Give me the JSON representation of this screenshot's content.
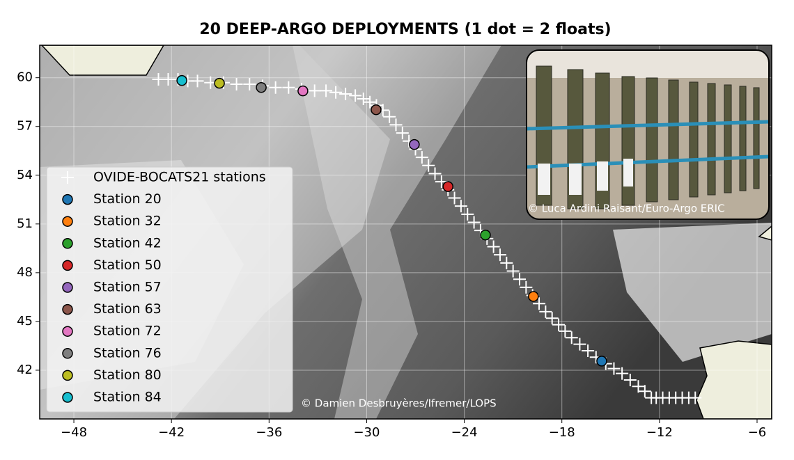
{
  "chart_data": {
    "type": "scatter",
    "title": "20 DEEP-ARGO DEPLOYMENTS (1 dot = 2 floats)",
    "annotations": [
      "© Damien Desbruyères/Ifremer/LOPS",
      "© Luca Ardini Raisant/Euro-Argo ERIC"
    ],
    "xlim": [
      -50.1,
      -5.1
    ],
    "ylim": [
      39.0,
      62.0
    ],
    "xticks": [
      {
        "value": -48,
        "label": "−48"
      },
      {
        "value": -42,
        "label": "−42"
      },
      {
        "value": -36,
        "label": "−36"
      },
      {
        "value": -30,
        "label": "−30"
      },
      {
        "value": -24,
        "label": "−24"
      },
      {
        "value": -18,
        "label": "−18"
      },
      {
        "value": -12,
        "label": "−12"
      },
      {
        "value": -6,
        "label": "−6"
      }
    ],
    "yticks": [
      42,
      45,
      48,
      51,
      54,
      57,
      60
    ],
    "grid": true,
    "legend": "lower left",
    "series": [
      {
        "name": "OVIDE-BOCATS21 stations",
        "marker": "+",
        "color": "#ffffff",
        "x": [
          -9.8,
          -10.2,
          -10.6,
          -11.0,
          -11.4,
          -11.8,
          -12.2,
          -12.5,
          -12.9,
          -13.3,
          -13.8,
          -14.3,
          -14.8,
          -15.3,
          -15.9,
          -16.4,
          -16.9,
          -17.4,
          -17.8,
          -18.2,
          -18.6,
          -19.0,
          -19.4,
          -19.8,
          -20.2,
          -20.6,
          -21.0,
          -21.4,
          -21.8,
          -22.2,
          -22.6,
          -23.0,
          -23.4,
          -23.8,
          -24.2,
          -24.6,
          -25.0,
          -25.4,
          -25.8,
          -26.2,
          -26.6,
          -27.0,
          -27.4,
          -27.8,
          -28.2,
          -28.6,
          -29.0,
          -29.4,
          -29.8,
          -30.2,
          -30.7,
          -31.3,
          -31.9,
          -32.5,
          -33.2,
          -34.0,
          -34.8,
          -35.6,
          -36.4,
          -37.2,
          -38.0,
          -38.8,
          -39.6,
          -40.4,
          -41.0,
          -41.6,
          -42.2,
          -42.8
        ],
        "y": [
          40.3,
          40.3,
          40.3,
          40.3,
          40.3,
          40.3,
          40.3,
          40.3,
          40.7,
          41.0,
          41.4,
          41.8,
          42.1,
          42.4,
          42.8,
          43.2,
          43.6,
          44.0,
          44.4,
          44.8,
          45.2,
          45.6,
          46.1,
          46.6,
          47.1,
          47.6,
          48.1,
          48.6,
          49.1,
          49.6,
          50.1,
          50.6,
          51.1,
          51.6,
          52.1,
          52.6,
          53.1,
          53.6,
          54.1,
          54.6,
          55.1,
          55.6,
          56.1,
          56.6,
          57.1,
          57.6,
          58.0,
          58.3,
          58.5,
          58.7,
          58.9,
          59.0,
          59.1,
          59.2,
          59.2,
          59.3,
          59.4,
          59.4,
          59.5,
          59.6,
          59.6,
          59.7,
          59.7,
          59.8,
          59.8,
          59.9,
          59.9,
          59.9
        ]
      },
      {
        "name": "Station 20",
        "marker": "o",
        "color": "#1f77b4",
        "x": [
          -15.55
        ],
        "y": [
          42.56
        ]
      },
      {
        "name": "Station 32",
        "marker": "o",
        "color": "#ff7f0e",
        "x": [
          -19.75
        ],
        "y": [
          46.54
        ]
      },
      {
        "name": "Station 42",
        "marker": "o",
        "color": "#2ca02c",
        "x": [
          -22.7
        ],
        "y": [
          50.32
        ]
      },
      {
        "name": "Station 50",
        "marker": "o",
        "color": "#d62728",
        "x": [
          -25.0
        ],
        "y": [
          53.3
        ]
      },
      {
        "name": "Station 57",
        "marker": "o",
        "color": "#9467bd",
        "x": [
          -27.07
        ],
        "y": [
          55.89
        ]
      },
      {
        "name": "Station 63",
        "marker": "o",
        "color": "#8c564b",
        "x": [
          -29.42
        ],
        "y": [
          58.03
        ]
      },
      {
        "name": "Station 72",
        "marker": "o",
        "color": "#e377c2",
        "x": [
          -33.92
        ],
        "y": [
          59.19
        ]
      },
      {
        "name": "Station 76",
        "marker": "o",
        "color": "#7f7f7f",
        "x": [
          -36.48
        ],
        "y": [
          59.4
        ]
      },
      {
        "name": "Station 80",
        "marker": "o",
        "color": "#bcbd22",
        "x": [
          -39.05
        ],
        "y": [
          59.66
        ]
      },
      {
        "name": "Station 84",
        "marker": "o",
        "color": "#17becf",
        "x": [
          -41.36
        ],
        "y": [
          59.83
        ]
      }
    ]
  }
}
